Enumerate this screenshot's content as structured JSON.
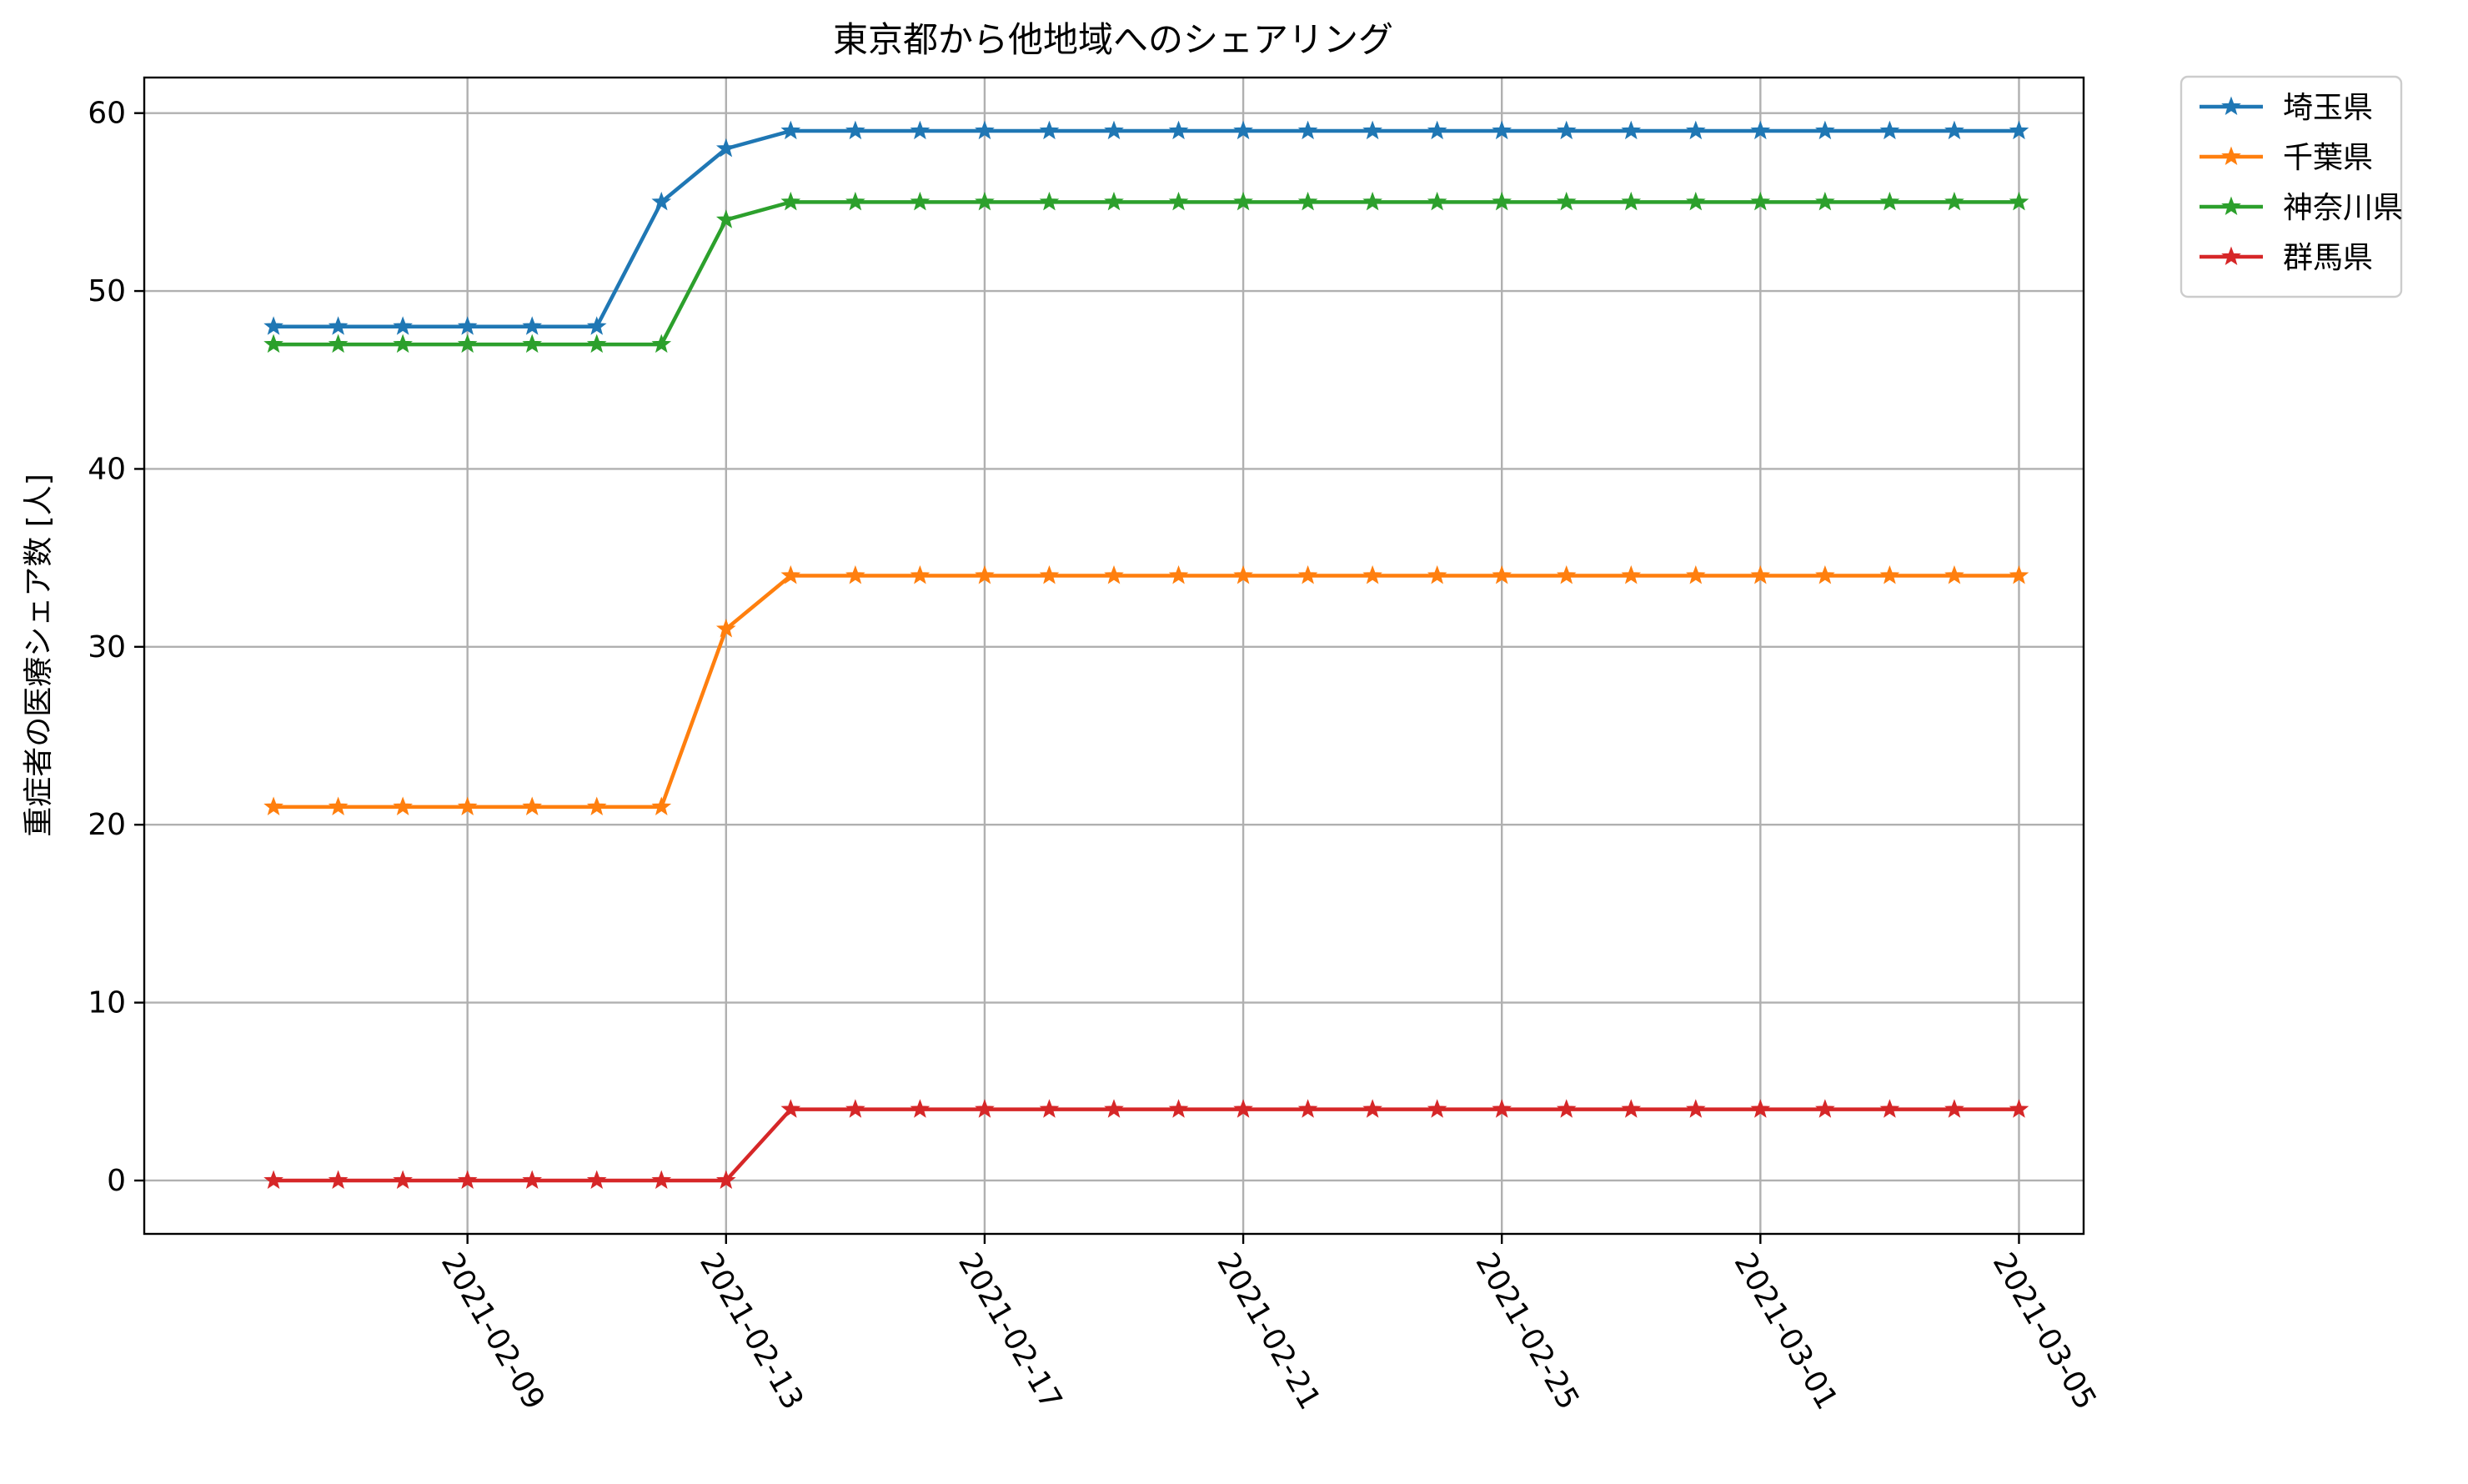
{
  "chart_data": {
    "type": "line",
    "title": "東京都から他地域へのシェアリング",
    "xlabel": "",
    "ylabel": "重症者の医療シェア数 [人]",
    "ylim": [
      -3,
      62
    ],
    "yticks": [
      0,
      10,
      20,
      30,
      40,
      50,
      60
    ],
    "xlim": [
      "2021-02-04",
      "2021-03-06"
    ],
    "xticks": [
      "2021-02-09",
      "2021-02-13",
      "2021-02-17",
      "2021-02-21",
      "2021-02-25",
      "2021-03-01",
      "2021-03-05"
    ],
    "grid": true,
    "legend": "outside-top-right",
    "marker": "star",
    "x": [
      "2021-02-06",
      "2021-02-07",
      "2021-02-08",
      "2021-02-09",
      "2021-02-10",
      "2021-02-11",
      "2021-02-12",
      "2021-02-13",
      "2021-02-14",
      "2021-02-15",
      "2021-02-16",
      "2021-02-17",
      "2021-02-18",
      "2021-02-19",
      "2021-02-20",
      "2021-02-21",
      "2021-02-22",
      "2021-02-23",
      "2021-02-24",
      "2021-02-25",
      "2021-02-26",
      "2021-02-27",
      "2021-02-28",
      "2021-03-01",
      "2021-03-02",
      "2021-03-03",
      "2021-03-04",
      "2021-03-05"
    ],
    "series": [
      {
        "name": "埼玉県",
        "color": "#1f77b4",
        "values": [
          48,
          48,
          48,
          48,
          48,
          48,
          55,
          58,
          59,
          59,
          59,
          59,
          59,
          59,
          59,
          59,
          59,
          59,
          59,
          59,
          59,
          59,
          59,
          59,
          59,
          59,
          59,
          59
        ]
      },
      {
        "name": "千葉県",
        "color": "#ff7f0e",
        "values": [
          21,
          21,
          21,
          21,
          21,
          21,
          21,
          31,
          34,
          34,
          34,
          34,
          34,
          34,
          34,
          34,
          34,
          34,
          34,
          34,
          34,
          34,
          34,
          34,
          34,
          34,
          34,
          34
        ]
      },
      {
        "name": "神奈川県",
        "color": "#2ca02c",
        "values": [
          47,
          47,
          47,
          47,
          47,
          47,
          47,
          54,
          55,
          55,
          55,
          55,
          55,
          55,
          55,
          55,
          55,
          55,
          55,
          55,
          55,
          55,
          55,
          55,
          55,
          55,
          55,
          55
        ]
      },
      {
        "name": "群馬県",
        "color": "#d62728",
        "values": [
          0,
          0,
          0,
          0,
          0,
          0,
          0,
          0,
          4,
          4,
          4,
          4,
          4,
          4,
          4,
          4,
          4,
          4,
          4,
          4,
          4,
          4,
          4,
          4,
          4,
          4,
          4,
          4
        ]
      }
    ]
  }
}
